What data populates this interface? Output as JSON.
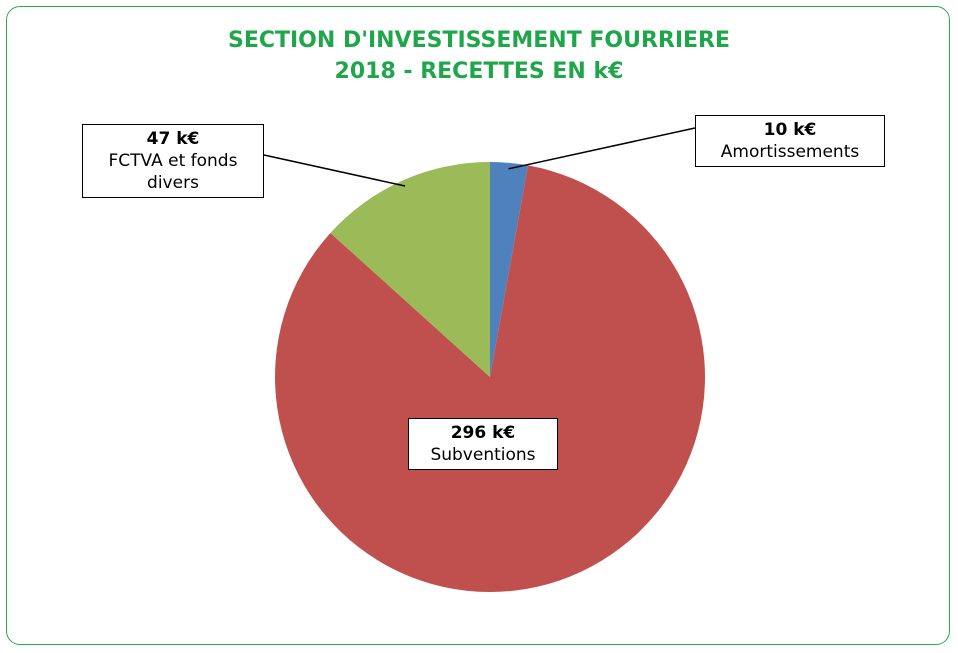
{
  "chart_data": {
    "type": "pie",
    "title": [
      "SECTION D'INVESTISSEMENT FOURRIERE",
      "2018 - RECETTES EN k€"
    ],
    "categories": [
      "Amortissements",
      "Subventions",
      "FCTVA et fonds divers"
    ],
    "values": [
      10,
      296,
      47
    ],
    "value_labels": [
      "10 k€",
      "296 k€",
      "47 k€"
    ],
    "colors": [
      "#4f81bd",
      "#c0504d",
      "#9bbb59"
    ]
  }
}
